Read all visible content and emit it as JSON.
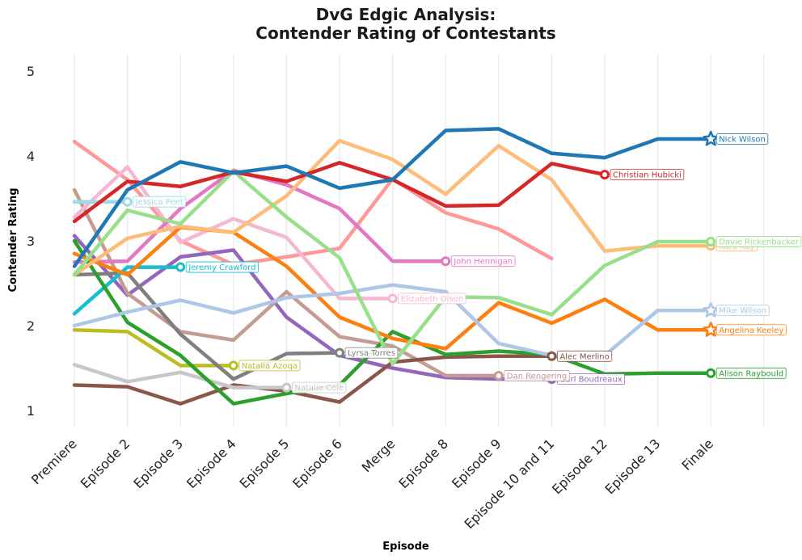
{
  "chart_data": {
    "type": "line",
    "title": "DvG Edgic Analysis:",
    "subtitle": "Contender Rating of Contestants",
    "xlabel": "Episode",
    "ylabel": "Contender Rating",
    "categories": [
      "Premiere",
      "Episode 2",
      "Episode 3",
      "Episode 4",
      "Episode 5",
      "Episode 6",
      "Merge",
      "Episode 8",
      "Episode 9",
      "Episode 10 and 11",
      "Episode 12",
      "Episode 13",
      "Finale"
    ],
    "y_ticks": [
      "1",
      "2",
      "3",
      "4",
      "5"
    ],
    "ylim": [
      0.8,
      5.2
    ],
    "grid": "vertical",
    "legend": "end-of-line labels",
    "series": [
      {
        "name": "Nick Wilson",
        "color": "#1f77b4",
        "marker": "star",
        "values": [
          2.7,
          3.6,
          3.93,
          3.8,
          3.88,
          3.62,
          3.72,
          4.3,
          4.32,
          4.03,
          3.98,
          4.2,
          4.2
        ]
      },
      {
        "name": "Christian Hubicki",
        "color": "#d62728",
        "marker": "circle",
        "values": [
          3.23,
          3.7,
          3.64,
          3.81,
          3.7,
          3.92,
          3.72,
          3.41,
          3.42,
          3.91,
          3.78,
          null,
          null
        ]
      },
      {
        "name": "Davie Rickenbacker",
        "color": "#98df8a",
        "marker": "circle",
        "values": [
          2.6,
          3.36,
          3.2,
          3.82,
          3.28,
          2.8,
          1.55,
          2.34,
          2.33,
          2.13,
          2.71,
          2.99,
          2.99
        ]
      },
      {
        "name": "Kara Kay",
        "color": "#ffbb78",
        "marker": "circle",
        "values": [
          2.6,
          3.03,
          3.17,
          3.1,
          3.53,
          4.18,
          3.96,
          3.55,
          4.12,
          3.72,
          2.88,
          2.94,
          2.94
        ]
      },
      {
        "name": "Mike Wilson",
        "color": "#aec7e8",
        "marker": "star",
        "values": [
          2.0,
          2.16,
          2.3,
          2.15,
          2.33,
          2.38,
          2.48,
          2.4,
          1.79,
          1.65,
          1.65,
          2.18,
          2.18
        ]
      },
      {
        "name": "Angelina Keeley",
        "color": "#ff7f0e",
        "marker": "star",
        "values": [
          2.85,
          2.6,
          3.16,
          3.1,
          2.7,
          2.1,
          1.85,
          1.73,
          2.27,
          2.03,
          2.31,
          1.95,
          1.95
        ]
      },
      {
        "name": "Alison Raybould",
        "color": "#2ca02c",
        "marker": "circle",
        "values": [
          3.0,
          2.04,
          1.65,
          1.08,
          1.2,
          1.3,
          1.93,
          1.66,
          1.7,
          1.66,
          1.43,
          1.44,
          1.44
        ]
      },
      {
        "name": "John Hennigan",
        "color": "#e377c2",
        "marker": "circle",
        "values": [
          2.75,
          2.76,
          3.38,
          3.83,
          3.66,
          3.38,
          2.76,
          2.76,
          null,
          null,
          null,
          null,
          null
        ]
      },
      {
        "name": "Jessica Peet",
        "color": "#9edae5",
        "marker": "circle",
        "values": [
          3.46,
          3.46,
          null,
          null,
          null,
          null,
          null,
          null,
          null,
          null,
          null,
          null,
          null
        ]
      },
      {
        "name": "Jeremy Crawford",
        "color": "#17becf",
        "marker": "circle",
        "values": [
          2.14,
          2.69,
          2.69,
          null,
          null,
          null,
          null,
          null,
          null,
          null,
          null,
          null,
          null
        ]
      },
      {
        "name": "Elizabeth Olson",
        "color": "#f7b6d2",
        "marker": "circle",
        "values": [
          3.28,
          3.87,
          2.98,
          3.26,
          3.04,
          2.32,
          2.32,
          null,
          null,
          null,
          null,
          null,
          null
        ]
      },
      {
        "name": "Lyrsa Torres",
        "color": "#7f7f7f",
        "marker": "circle",
        "values": [
          2.6,
          2.62,
          1.9,
          1.37,
          1.67,
          1.68,
          null,
          null,
          null,
          null,
          null,
          null,
          null
        ]
      },
      {
        "name": "Natalia Azoqa",
        "color": "#bcbd22",
        "marker": "circle",
        "values": [
          1.95,
          1.93,
          1.53,
          1.53,
          null,
          null,
          null,
          null,
          null,
          null,
          null,
          null,
          null
        ]
      },
      {
        "name": "Natalie Cole",
        "color": "#c7c7c7",
        "marker": "circle",
        "values": [
          1.54,
          1.34,
          1.45,
          1.27,
          1.27,
          null,
          null,
          null,
          null,
          null,
          null,
          null,
          null
        ]
      },
      {
        "name": "Alec Merlino",
        "color": "#8c564b",
        "marker": "circle",
        "values": [
          1.3,
          1.28,
          1.08,
          1.3,
          1.23,
          1.1,
          1.57,
          1.63,
          1.64,
          1.64,
          null,
          null,
          null
        ]
      },
      {
        "name": "Dan Rengering",
        "color": "#c49c94",
        "marker": "circle",
        "values": [
          3.6,
          2.38,
          1.93,
          1.83,
          2.4,
          1.87,
          1.76,
          1.41,
          1.41,
          null,
          null,
          null,
          null
        ]
      },
      {
        "name": "Carl Boudreaux",
        "color": "#9467bd",
        "marker": "circle",
        "values": [
          3.06,
          2.36,
          2.81,
          2.89,
          2.1,
          1.65,
          1.5,
          1.39,
          1.37,
          1.37,
          null,
          null,
          null
        ]
      },
      {
        "name": "",
        "color": "#ff9896",
        "marker": "none",
        "values": [
          4.17,
          3.72,
          3.0,
          2.72,
          2.81,
          2.91,
          3.73,
          3.33,
          3.14,
          2.79,
          null,
          null,
          null
        ]
      }
    ]
  }
}
